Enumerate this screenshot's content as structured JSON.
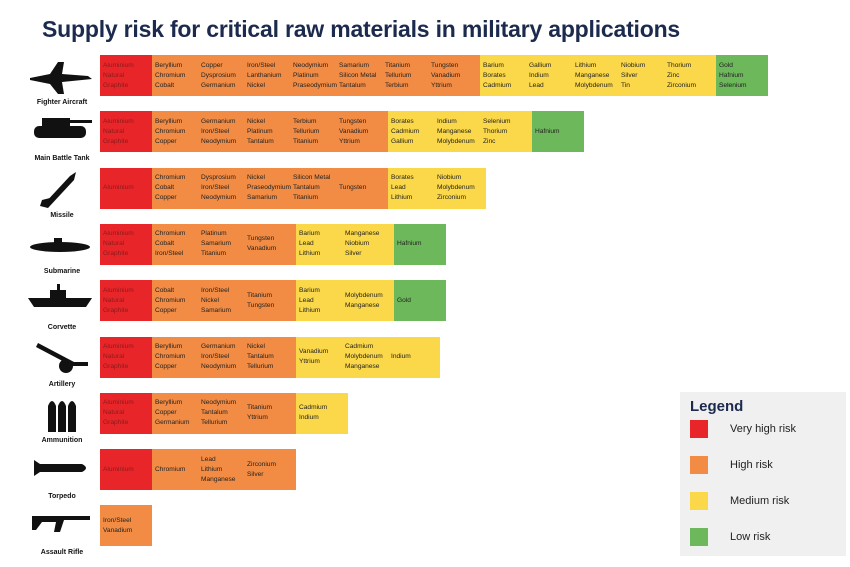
{
  "title": "Supply risk for critical raw materials in military applications",
  "legend": {
    "title": "Legend",
    "items": [
      {
        "label": "Very high risk",
        "color": "#e8262a"
      },
      {
        "label": "High risk",
        "color": "#f28c45"
      },
      {
        "label": "Medium risk",
        "color": "#fbd84a"
      },
      {
        "label": "Low risk",
        "color": "#6db85a"
      }
    ]
  },
  "rows": [
    {
      "label": "Fighter Aircraft",
      "segments": [
        {
          "color": "#e8262a",
          "columns": [
            [
              "Aluminium",
              "Natural",
              "Graphite"
            ]
          ]
        },
        {
          "color": "#f28c45",
          "columns": [
            [
              "Beryllium",
              "Chromium",
              "Cobalt"
            ],
            [
              "Copper",
              "Dysprosium",
              "Germanium"
            ],
            [
              "Iron/Steel",
              "Lanthanium",
              "Nickel"
            ],
            [
              "Neodymium",
              "Platinum",
              "Praseodymium"
            ],
            [
              "Samarium",
              "Silicon Metal",
              "Tantalum"
            ],
            [
              "Titanium",
              "Tellurium",
              "Terbium"
            ],
            [
              "Tungsten",
              "Vanadium",
              "Yttrium"
            ]
          ]
        },
        {
          "color": "#fbd84a",
          "columns": [
            [
              "Barium",
              "Borates",
              "Cadmium"
            ],
            [
              "Gallium",
              "Indium",
              "Lead"
            ],
            [
              "Lithium",
              "Manganese",
              "Molybdenum"
            ],
            [
              "Niobium",
              "Silver",
              "Tin"
            ],
            [
              "Thorium",
              "Zinc",
              "Zirconium"
            ]
          ]
        },
        {
          "color": "#6db85a",
          "columns": [
            [
              "Gold",
              "Hafnium",
              "Selenium"
            ]
          ]
        }
      ]
    },
    {
      "label": "Main Battle Tank",
      "segments": [
        {
          "color": "#e8262a",
          "columns": [
            [
              "Aluminium",
              "Natural",
              "Graphite"
            ]
          ]
        },
        {
          "color": "#f28c45",
          "columns": [
            [
              "Beryllium",
              "Chromium",
              "Copper"
            ],
            [
              "Germanium",
              "Iron/Steel",
              "Neodymium"
            ],
            [
              "Nickel",
              "Platinum",
              "Tantalum"
            ],
            [
              "Terbium",
              "Tellurium",
              "Titanium"
            ],
            [
              "Tungsten",
              "Vanadium",
              "Yttrium"
            ]
          ]
        },
        {
          "color": "#fbd84a",
          "columns": [
            [
              "Borates",
              "Cadmium",
              "Gallium"
            ],
            [
              "Indium",
              "Manganese",
              "Molybdenum"
            ],
            [
              "Selenium",
              "Thorium",
              "Zinc"
            ]
          ]
        },
        {
          "color": "#6db85a",
          "columns": [
            [
              "Hafnium"
            ]
          ]
        }
      ]
    },
    {
      "label": "Missile",
      "segments": [
        {
          "color": "#e8262a",
          "columns": [
            [
              "Aluminium"
            ]
          ]
        },
        {
          "color": "#f28c45",
          "columns": [
            [
              "Chromium",
              "Cobalt",
              "Copper"
            ],
            [
              "Dysprosium",
              "Iron/Steel",
              "Neodymium"
            ],
            [
              "Nickel",
              "Praseodymium",
              "Samarium"
            ],
            [
              "Silicon Metal",
              "Tantalum",
              "Titanium"
            ],
            [
              "Tungsten"
            ]
          ]
        },
        {
          "color": "#fbd84a",
          "columns": [
            [
              "Borates",
              "Lead",
              "Lithium"
            ],
            [
              "Niobium",
              "Molybdenum",
              "Zirconium"
            ]
          ]
        }
      ]
    },
    {
      "label": "Submarine",
      "segments": [
        {
          "color": "#e8262a",
          "columns": [
            [
              "Aluminium",
              "Natural",
              "Graphite"
            ]
          ]
        },
        {
          "color": "#f28c45",
          "columns": [
            [
              "Chromium",
              "Cobalt",
              "Iron/Steel"
            ],
            [
              "Platinum",
              "Samarium",
              "Titanium"
            ],
            [
              "Tungsten",
              "Vanadium"
            ]
          ]
        },
        {
          "color": "#fbd84a",
          "columns": [
            [
              "Barium",
              "Lead",
              "Lithium"
            ],
            [
              "Manganese",
              "Niobium",
              "Silver"
            ]
          ]
        },
        {
          "color": "#6db85a",
          "columns": [
            [
              "Hafnium"
            ]
          ]
        }
      ]
    },
    {
      "label": "Corvette",
      "segments": [
        {
          "color": "#e8262a",
          "columns": [
            [
              "Aluminium",
              "Natural",
              "Graphite"
            ]
          ]
        },
        {
          "color": "#f28c45",
          "columns": [
            [
              "Cobalt",
              "Chromium",
              "Copper"
            ],
            [
              "Iron/Steel",
              "Nickel",
              "Samarium"
            ],
            [
              "Titanium",
              "Tungsten"
            ]
          ]
        },
        {
          "color": "#fbd84a",
          "columns": [
            [
              "Barium",
              "Lead",
              "Lithium"
            ],
            [
              "Molybdenum",
              "Manganese"
            ]
          ]
        },
        {
          "color": "#6db85a",
          "columns": [
            [
              "Gold"
            ]
          ]
        }
      ]
    },
    {
      "label": "Artillery",
      "segments": [
        {
          "color": "#e8262a",
          "columns": [
            [
              "Aluminium",
              "Natural",
              "Graphite"
            ]
          ]
        },
        {
          "color": "#f28c45",
          "columns": [
            [
              "Beryllium",
              "Chromium",
              "Copper"
            ],
            [
              "Germanium",
              "Iron/Steel",
              "Neodymium"
            ],
            [
              "Nickel",
              "Tantalum",
              "Tellurium"
            ]
          ]
        },
        {
          "color": "#fbd84a",
          "columns": [
            [
              "Vanadium",
              "Yttrium"
            ],
            [
              "Cadmium",
              "Molybdenum",
              "Manganese"
            ],
            [
              "Indium"
            ]
          ]
        }
      ]
    },
    {
      "label": "Ammunition",
      "segments": [
        {
          "color": "#e8262a",
          "columns": [
            [
              "Aluminium",
              "Natural",
              "Graphite"
            ]
          ]
        },
        {
          "color": "#f28c45",
          "columns": [
            [
              "Beryllium",
              "Copper",
              "Germanium"
            ],
            [
              "Neodymium",
              "Tantalum",
              "Tellurium"
            ],
            [
              "Titanium",
              "Yttrium"
            ]
          ]
        },
        {
          "color": "#fbd84a",
          "columns": [
            [
              "Cadmium",
              "Indium"
            ]
          ]
        }
      ]
    },
    {
      "label": "Torpedo",
      "segments": [
        {
          "color": "#e8262a",
          "columns": [
            [
              "Aluminium"
            ]
          ]
        },
        {
          "color": "#f28c45",
          "columns": [
            [
              "Chromium"
            ],
            [
              "Lead",
              "Lithium",
              "Manganese"
            ],
            [
              "Zirconium",
              "Silver"
            ]
          ]
        }
      ]
    },
    {
      "label": "Assault Rifle",
      "segments": [
        {
          "color": "#f28c45",
          "columns": [
            [
              "Iron/Steel",
              "Vanadium"
            ]
          ]
        }
      ]
    }
  ]
}
